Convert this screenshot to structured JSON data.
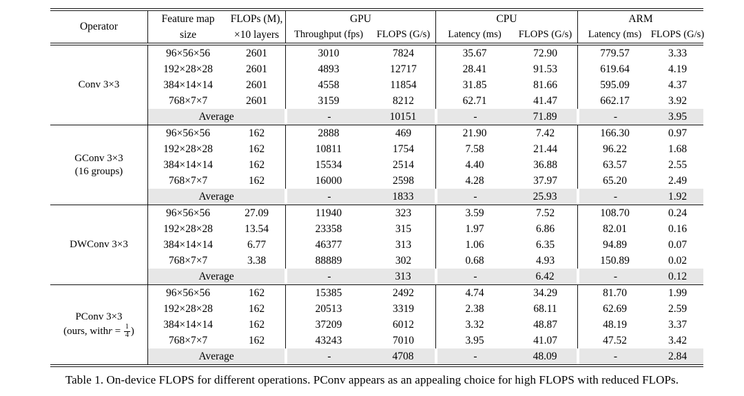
{
  "caption": "Table 1. On-device FLOPS for different operations. PConv appears as an appealing choice for high FLOPS with reduced FLOPs.",
  "average_label": "Average",
  "header": {
    "operator": "Operator",
    "feature_map_line1": "Feature map",
    "feature_map_line2": "size",
    "flops_line1": "FLOPs (M),",
    "flops_line2": "×10 layers",
    "gpu": "GPU",
    "gpu_sub1": "Throughput (fps)",
    "gpu_sub2": "FLOPS (G/s)",
    "cpu": "CPU",
    "cpu_sub1": "Latency (ms)",
    "cpu_sub2": "FLOPS (G/s)",
    "arm": "ARM",
    "arm_sub1": "Latency (ms)",
    "arm_sub2": "FLOPS (G/s)"
  },
  "columns": [
    "feature-map-size",
    "flops-m",
    "gpu-throughput",
    "gpu-flops",
    "cpu-latency",
    "cpu-flops",
    "arm-latency",
    "arm-flops"
  ],
  "blocks": [
    {
      "operator": [
        "Conv 3×3"
      ],
      "rows": [
        [
          "96×56×56",
          "2601",
          "3010",
          "7824",
          "35.67",
          "72.90",
          "779.57",
          "3.33"
        ],
        [
          "192×28×28",
          "2601",
          "4893",
          "12717",
          "28.41",
          "91.53",
          "619.64",
          "4.19"
        ],
        [
          "384×14×14",
          "2601",
          "4558",
          "11854",
          "31.85",
          "81.66",
          "595.09",
          "4.37"
        ],
        [
          "768×7×7",
          "2601",
          "3159",
          "8212",
          "62.71",
          "41.47",
          "662.17",
          "3.92"
        ]
      ],
      "average": [
        "-",
        "10151",
        "-",
        "71.89",
        "-",
        "3.95"
      ]
    },
    {
      "operator": [
        "GConv 3×3",
        "(16 groups)"
      ],
      "rows": [
        [
          "96×56×56",
          "162",
          "2888",
          "469",
          "21.90",
          "7.42",
          "166.30",
          "0.97"
        ],
        [
          "192×28×28",
          "162",
          "10811",
          "1754",
          "7.58",
          "21.44",
          "96.22",
          "1.68"
        ],
        [
          "384×14×14",
          "162",
          "15534",
          "2514",
          "4.40",
          "36.88",
          "63.57",
          "2.55"
        ],
        [
          "768×7×7",
          "162",
          "16000",
          "2598",
          "4.28",
          "37.97",
          "65.20",
          "2.49"
        ]
      ],
      "average": [
        "-",
        "1833",
        "-",
        "25.93",
        "-",
        "1.92"
      ]
    },
    {
      "operator": [
        "DWConv 3×3"
      ],
      "rows": [
        [
          "96×56×56",
          "27.09",
          "11940",
          "323",
          "3.59",
          "7.52",
          "108.70",
          "0.24"
        ],
        [
          "192×28×28",
          "13.54",
          "23358",
          "315",
          "1.97",
          "6.86",
          "82.01",
          "0.16"
        ],
        [
          "384×14×14",
          "6.77",
          "46377",
          "313",
          "1.06",
          "6.35",
          "94.89",
          "0.07"
        ],
        [
          "768×7×7",
          "3.38",
          "88889",
          "302",
          "0.68",
          "4.93",
          "150.89",
          "0.02"
        ]
      ],
      "average": [
        "-",
        "313",
        "-",
        "6.42",
        "-",
        "0.12"
      ]
    },
    {
      "operator": [
        "PConv 3×3"
      ],
      "operator_line2": {
        "pre": "(ours, with ",
        "var": "r",
        "eq": " = ",
        "num": "1",
        "den": "4",
        "post": ")"
      },
      "rows": [
        [
          "96×56×56",
          "162",
          "15385",
          "2492",
          "4.74",
          "34.29",
          "81.70",
          "1.99"
        ],
        [
          "192×28×28",
          "162",
          "20513",
          "3319",
          "2.38",
          "68.11",
          "62.69",
          "2.59"
        ],
        [
          "384×14×14",
          "162",
          "37209",
          "6012",
          "3.32",
          "48.87",
          "48.19",
          "3.37"
        ],
        [
          "768×7×7",
          "162",
          "43243",
          "7010",
          "3.95",
          "41.07",
          "47.52",
          "3.42"
        ]
      ],
      "average": [
        "-",
        "4708",
        "-",
        "48.09",
        "-",
        "2.84"
      ]
    }
  ]
}
